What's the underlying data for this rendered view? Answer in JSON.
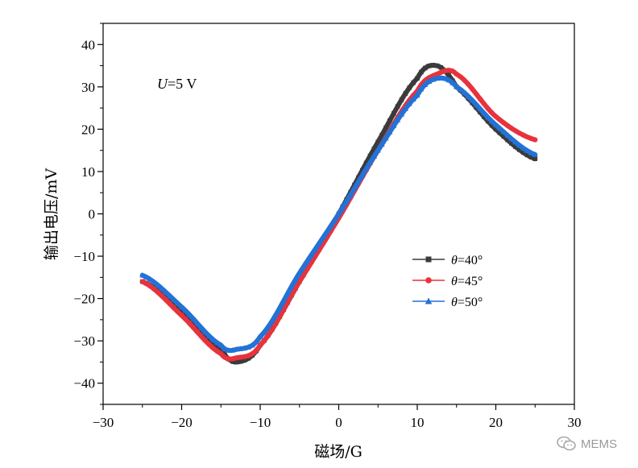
{
  "chart_data": {
    "type": "line",
    "xlabel": "磁场/G",
    "ylabel": "输出电压/mV",
    "xlim": [
      -30,
      30
    ],
    "ylim": [
      -45,
      45
    ],
    "xticks": [
      -30,
      -20,
      -10,
      0,
      10,
      20,
      30
    ],
    "yticks": [
      -40,
      -30,
      -20,
      -10,
      0,
      10,
      20,
      30,
      40
    ],
    "annotation": {
      "italic": "U",
      "rest": "=5 V"
    },
    "legend_position": "center-right",
    "x": [
      -25,
      -20,
      -15,
      -13,
      -10,
      -5,
      0,
      5,
      10,
      12.5,
      15,
      20,
      25
    ],
    "series": [
      {
        "name_symbol": "θ",
        "name_value": "=40°",
        "marker": "square",
        "color": "#3b3b3b",
        "values": [
          -16,
          -23,
          -32,
          -35,
          -31,
          -16,
          0,
          17,
          32,
          35,
          30,
          20,
          13
        ]
      },
      {
        "name_symbol": "θ",
        "name_value": "=45°",
        "marker": "circle",
        "color": "#e8323c",
        "values": [
          -16,
          -24,
          -33,
          -34,
          -31,
          -16,
          -1,
          15,
          29,
          33,
          33,
          23,
          17.5
        ]
      },
      {
        "name_symbol": "θ",
        "name_value": "=50°",
        "marker": "triangle",
        "color": "#2372d6",
        "values": [
          -14.5,
          -22,
          -31,
          -32,
          -29,
          -14,
          0,
          15,
          28,
          32,
          30,
          21,
          14
        ]
      }
    ]
  },
  "watermark": {
    "text": "MEMS"
  }
}
